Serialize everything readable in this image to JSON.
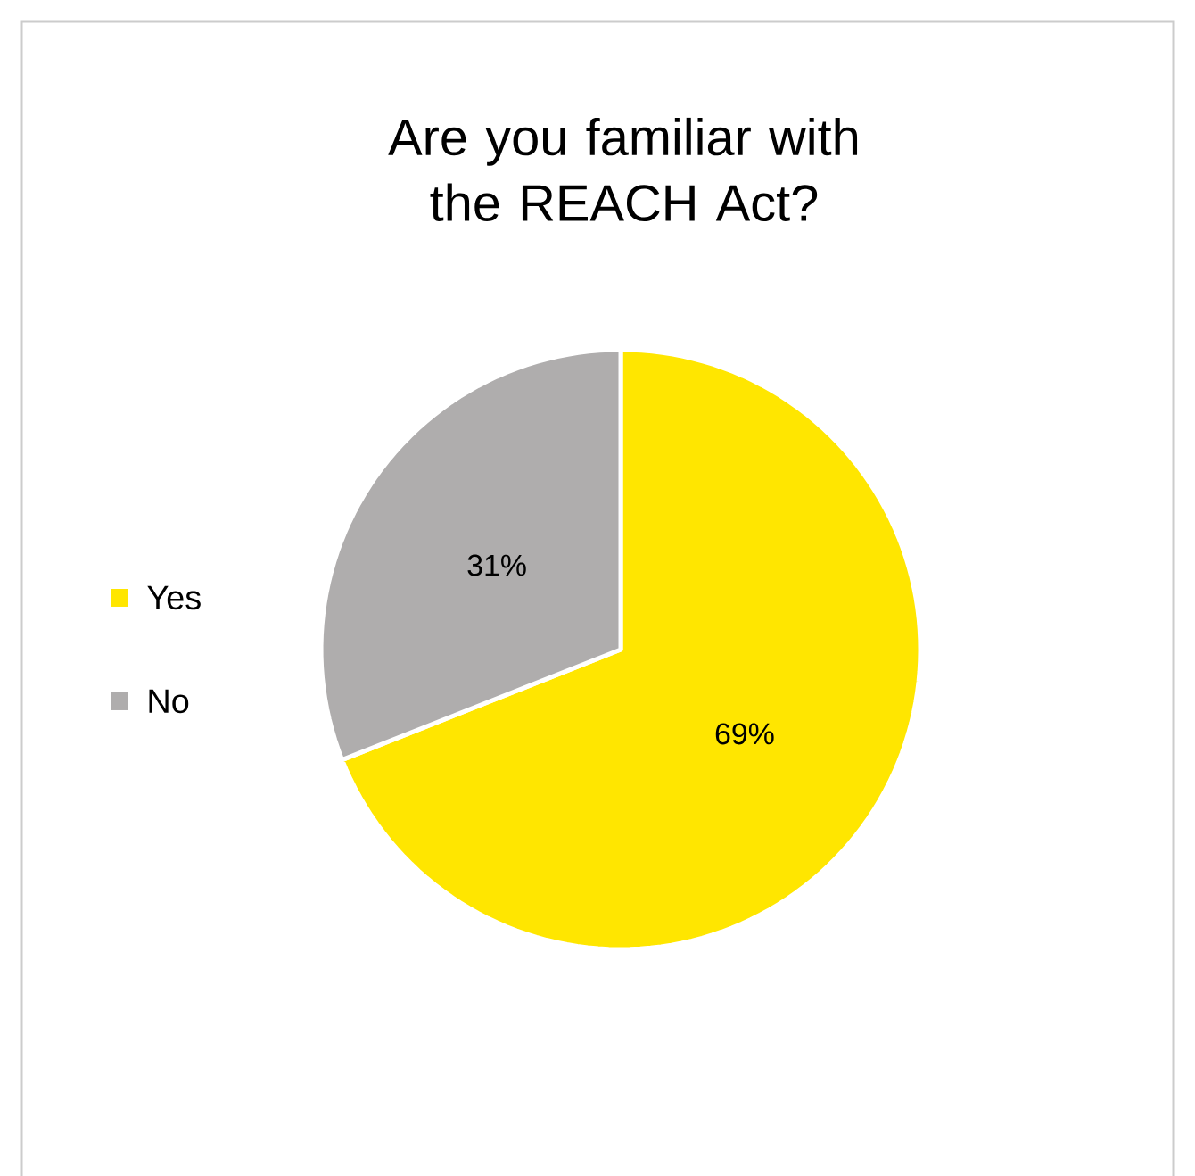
{
  "chart_data": {
    "type": "pie",
    "title": "Are you familiar with the REACH Act?",
    "categories": [
      "Yes",
      "No"
    ],
    "values": [
      69,
      31
    ],
    "colors": [
      "#ffe600",
      "#afadad"
    ],
    "value_labels": [
      "69%",
      "31%"
    ],
    "legend": "left"
  }
}
